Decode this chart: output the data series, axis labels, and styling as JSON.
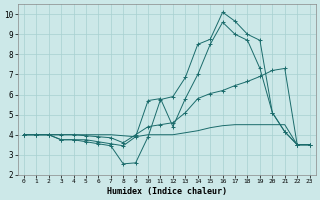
{
  "xlabel": "Humidex (Indice chaleur)",
  "background_color": "#cce8e8",
  "grid_color": "#a8d0d0",
  "line_color": "#1a6b6b",
  "xlim": [
    -0.5,
    23.5
  ],
  "ylim": [
    2,
    10.5
  ],
  "xticks": [
    0,
    1,
    2,
    3,
    4,
    5,
    6,
    7,
    8,
    9,
    10,
    11,
    12,
    13,
    14,
    15,
    16,
    17,
    18,
    19,
    20,
    21,
    22,
    23
  ],
  "yticks": [
    2,
    3,
    4,
    5,
    6,
    7,
    8,
    9,
    10
  ],
  "series": [
    {
      "x": [
        0,
        1,
        2,
        3,
        4,
        5,
        6,
        7,
        8,
        9,
        10,
        11,
        12,
        13,
        14,
        15,
        16,
        17,
        18,
        19,
        20,
        21,
        22,
        23
      ],
      "y": [
        4.0,
        4.0,
        4.0,
        3.75,
        3.75,
        3.65,
        3.55,
        3.45,
        2.55,
        2.6,
        3.9,
        5.75,
        5.9,
        6.85,
        8.5,
        8.75,
        10.1,
        9.65,
        9.0,
        8.7,
        5.1,
        4.15,
        3.5,
        3.5
      ],
      "marker": "+"
    },
    {
      "x": [
        0,
        1,
        2,
        3,
        4,
        5,
        6,
        7,
        8,
        9,
        10,
        11,
        12,
        13,
        14,
        15,
        16,
        17,
        18,
        19,
        20,
        21,
        22,
        23
      ],
      "y": [
        4.0,
        4.0,
        4.0,
        3.75,
        3.75,
        3.75,
        3.65,
        3.55,
        3.45,
        3.9,
        5.7,
        5.8,
        4.4,
        5.8,
        7.0,
        8.5,
        9.6,
        9.0,
        8.7,
        7.3,
        5.1,
        4.15,
        3.5,
        3.5
      ],
      "marker": "+"
    },
    {
      "x": [
        0,
        1,
        2,
        3,
        4,
        5,
        6,
        7,
        8,
        9,
        10,
        11,
        12,
        13,
        14,
        15,
        16,
        17,
        18,
        19,
        20,
        21,
        22,
        23
      ],
      "y": [
        4.0,
        4.0,
        4.0,
        4.0,
        4.0,
        3.95,
        3.9,
        3.85,
        3.6,
        4.0,
        4.4,
        4.5,
        4.6,
        5.1,
        5.8,
        6.05,
        6.2,
        6.45,
        6.65,
        6.9,
        7.2,
        7.3,
        3.5,
        3.5
      ],
      "marker": "+"
    },
    {
      "x": [
        0,
        1,
        2,
        3,
        4,
        5,
        6,
        7,
        8,
        9,
        10,
        11,
        12,
        13,
        14,
        15,
        16,
        17,
        18,
        19,
        20,
        21,
        22,
        23
      ],
      "y": [
        4.0,
        4.0,
        4.0,
        4.0,
        4.0,
        4.0,
        4.0,
        4.0,
        3.95,
        3.9,
        4.0,
        4.0,
        4.0,
        4.1,
        4.2,
        4.35,
        4.45,
        4.5,
        4.5,
        4.5,
        4.5,
        4.5,
        3.5,
        3.5
      ],
      "marker": null
    }
  ]
}
